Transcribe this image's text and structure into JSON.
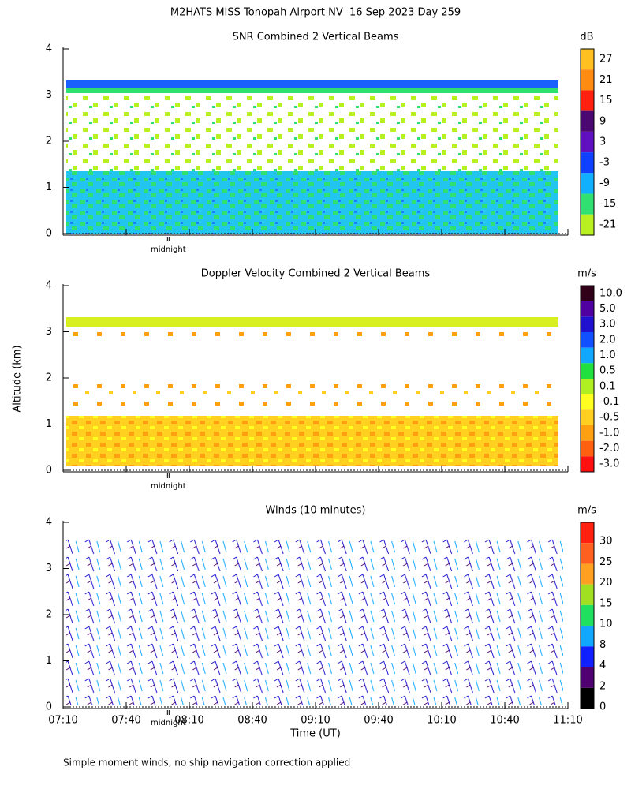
{
  "title": "M2HATS MISS Tonopah Airport NV  16 Sep 2023 Day 259",
  "footnote": "Simple moment winds, no ship navigation correction applied",
  "chart_data": [
    {
      "type": "heatmap",
      "title": "SNR Combined 2 Vertical Beams",
      "xlim": [
        430,
        670
      ],
      "xticks": [
        430,
        460,
        490,
        520,
        550,
        580,
        610,
        640,
        670
      ],
      "ylim": [
        0,
        4
      ],
      "yticks": [
        0,
        1,
        2,
        3,
        4
      ],
      "annotation": {
        "value": 480,
        "label": "midnight"
      },
      "colorbar": {
        "label": "dB",
        "ticks": [
          27,
          21,
          15,
          9,
          3,
          -3,
          -9,
          -15,
          -21
        ],
        "colors": [
          "#ffc020",
          "#ff8c10",
          "#ff2010",
          "#4a0870",
          "#6010c0",
          "#1040ff",
          "#10b0ff",
          "#30e070",
          "#b8f020"
        ]
      }
    },
    {
      "type": "heatmap",
      "title": "Doppler Velocity Combined 2 Vertical Beams",
      "ylabel": "Altitude (km)",
      "xlim": [
        430,
        670
      ],
      "xticks": [
        430,
        460,
        490,
        520,
        550,
        580,
        610,
        640,
        670
      ],
      "ylim": [
        0,
        4
      ],
      "yticks": [
        0,
        1,
        2,
        3,
        4
      ],
      "annotation": {
        "value": 480,
        "label": "midnight"
      },
      "colorbar": {
        "label": "m/s",
        "ticks": [
          {
            "value": 10,
            "label": "10.0"
          },
          {
            "value": 5,
            "label": "5.0"
          },
          {
            "value": 3,
            "label": "3.0"
          },
          {
            "value": 2,
            "label": "2.0"
          },
          {
            "value": 1,
            "label": "1.0"
          },
          0.5,
          0.1,
          -0.1,
          -0.5,
          {
            "value": -1,
            "label": "-1.0"
          },
          {
            "value": -2,
            "label": "-2.0"
          },
          {
            "value": -3,
            "label": "-3.0"
          }
        ],
        "colors": [
          "#300018",
          "#5000a0",
          "#2010d0",
          "#1050ff",
          "#10a8ff",
          "#20e040",
          "#b0f020",
          "#ffff20",
          "#ffd020",
          "#ffa010",
          "#ff6010",
          "#ff1010"
        ]
      }
    },
    {
      "type": "wind-barbs",
      "title": "Winds (10 minutes)",
      "xlabel": "Time (UT)",
      "xlim": [
        430,
        670
      ],
      "xticks": [
        {
          "value": 430,
          "label": "07:10"
        },
        {
          "value": 460,
          "label": "07:40"
        },
        {
          "value": 490,
          "label": "08:10"
        },
        {
          "value": 520,
          "label": "08:40"
        },
        {
          "value": 550,
          "label": "09:10"
        },
        {
          "value": 580,
          "label": "09:40"
        },
        {
          "value": 610,
          "label": "10:10"
        },
        {
          "value": 640,
          "label": "10:40"
        },
        {
          "value": 670,
          "label": "11:10"
        }
      ],
      "ylim": [
        0,
        4
      ],
      "yticks": [
        0,
        1,
        2,
        3,
        4
      ],
      "annotation": {
        "value": 480,
        "label": "midnight"
      },
      "colorbar": {
        "label": "m/s",
        "ticks": [
          30,
          25,
          20,
          15,
          10,
          8,
          4,
          2,
          0
        ],
        "colors": [
          "#ff2010",
          "#ff6020",
          "#ffa020",
          "#a0e020",
          "#20e060",
          "#10a8ff",
          "#1020ff",
          "#500070",
          "#000000"
        ]
      }
    }
  ]
}
